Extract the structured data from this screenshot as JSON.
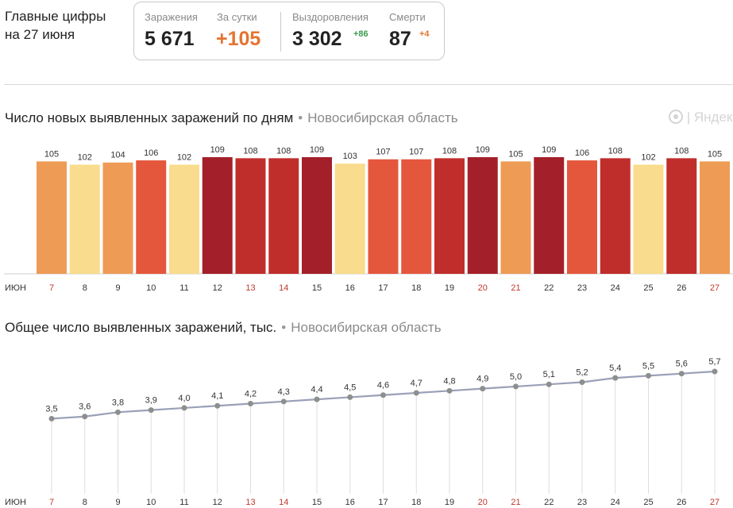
{
  "header": {
    "title_line1": "Главные цифры",
    "title_line2": "на 27 июня"
  },
  "stats": {
    "infections_label": "Заражения",
    "infections_value": "5 671",
    "daily_label": "За сутки",
    "daily_value": "+105",
    "recoveries_label": "Выздоровления",
    "recoveries_value": "3 302",
    "recoveries_delta": "+86",
    "deaths_label": "Смерти",
    "deaths_value": "87",
    "deaths_delta": "+4"
  },
  "bar_section": {
    "title": "Число новых выявленных заражений по дням",
    "separator": "•",
    "region": "Новосибирская область"
  },
  "line_section": {
    "title": "Общее число выявленных заражений, тыс.",
    "separator": "•",
    "region": "Новосибирская область"
  },
  "watermark": "| Яндекс",
  "colors": {
    "light_yellow": "#f9dc8d",
    "light_orange": "#ee9b56",
    "orange_red": "#e4573d",
    "red": "#c02e2c",
    "dark_red": "#a3202a",
    "weekend_label": "#c0392b",
    "line": "#9aa0b8",
    "point": "#8e8e8e"
  },
  "chart_data": [
    {
      "type": "bar",
      "title": "Число новых выявленных заражений по дням",
      "x_month_label": "ИЮН",
      "categories": [
        "7",
        "8",
        "9",
        "10",
        "11",
        "12",
        "13",
        "14",
        "15",
        "16",
        "17",
        "18",
        "19",
        "20",
        "21",
        "22",
        "23",
        "24",
        "25",
        "26",
        "27"
      ],
      "weekend": [
        "7",
        "13",
        "14",
        "20",
        "21",
        "27"
      ],
      "values": [
        105,
        102,
        104,
        106,
        102,
        109,
        108,
        108,
        109,
        103,
        107,
        107,
        108,
        109,
        105,
        109,
        106,
        108,
        102,
        108,
        105
      ],
      "bar_colors": [
        "#ee9b56",
        "#f9dc8d",
        "#ee9b56",
        "#e4573d",
        "#f9dc8d",
        "#a3202a",
        "#c02e2c",
        "#c02e2c",
        "#a3202a",
        "#f9dc8d",
        "#e4573d",
        "#e4573d",
        "#c02e2c",
        "#a3202a",
        "#ee9b56",
        "#a3202a",
        "#e4573d",
        "#c02e2c",
        "#f9dc8d",
        "#c02e2c",
        "#ee9b56"
      ],
      "ylim": [
        0,
        109
      ]
    },
    {
      "type": "line",
      "title": "Общее число выявленных заражений, тыс.",
      "x_month_label": "ИЮН",
      "categories": [
        "7",
        "8",
        "9",
        "10",
        "11",
        "12",
        "13",
        "14",
        "15",
        "16",
        "17",
        "18",
        "19",
        "20",
        "21",
        "22",
        "23",
        "24",
        "25",
        "26",
        "27"
      ],
      "weekend": [
        "7",
        "13",
        "14",
        "20",
        "21",
        "27"
      ],
      "values": [
        3.5,
        3.6,
        3.8,
        3.9,
        4.0,
        4.1,
        4.2,
        4.3,
        4.4,
        4.5,
        4.6,
        4.7,
        4.8,
        4.9,
        5.0,
        5.1,
        5.2,
        5.4,
        5.5,
        5.6,
        5.7
      ],
      "value_labels": [
        "3,5",
        "3,6",
        "3,8",
        "3,9",
        "4,0",
        "4,1",
        "4,2",
        "4,3",
        "4,4",
        "4,5",
        "4,6",
        "4,7",
        "4,8",
        "4,9",
        "5,0",
        "5,1",
        "5,2",
        "5,4",
        "5,5",
        "5,6",
        "5,7"
      ],
      "ylim": [
        0,
        5.7
      ]
    }
  ]
}
